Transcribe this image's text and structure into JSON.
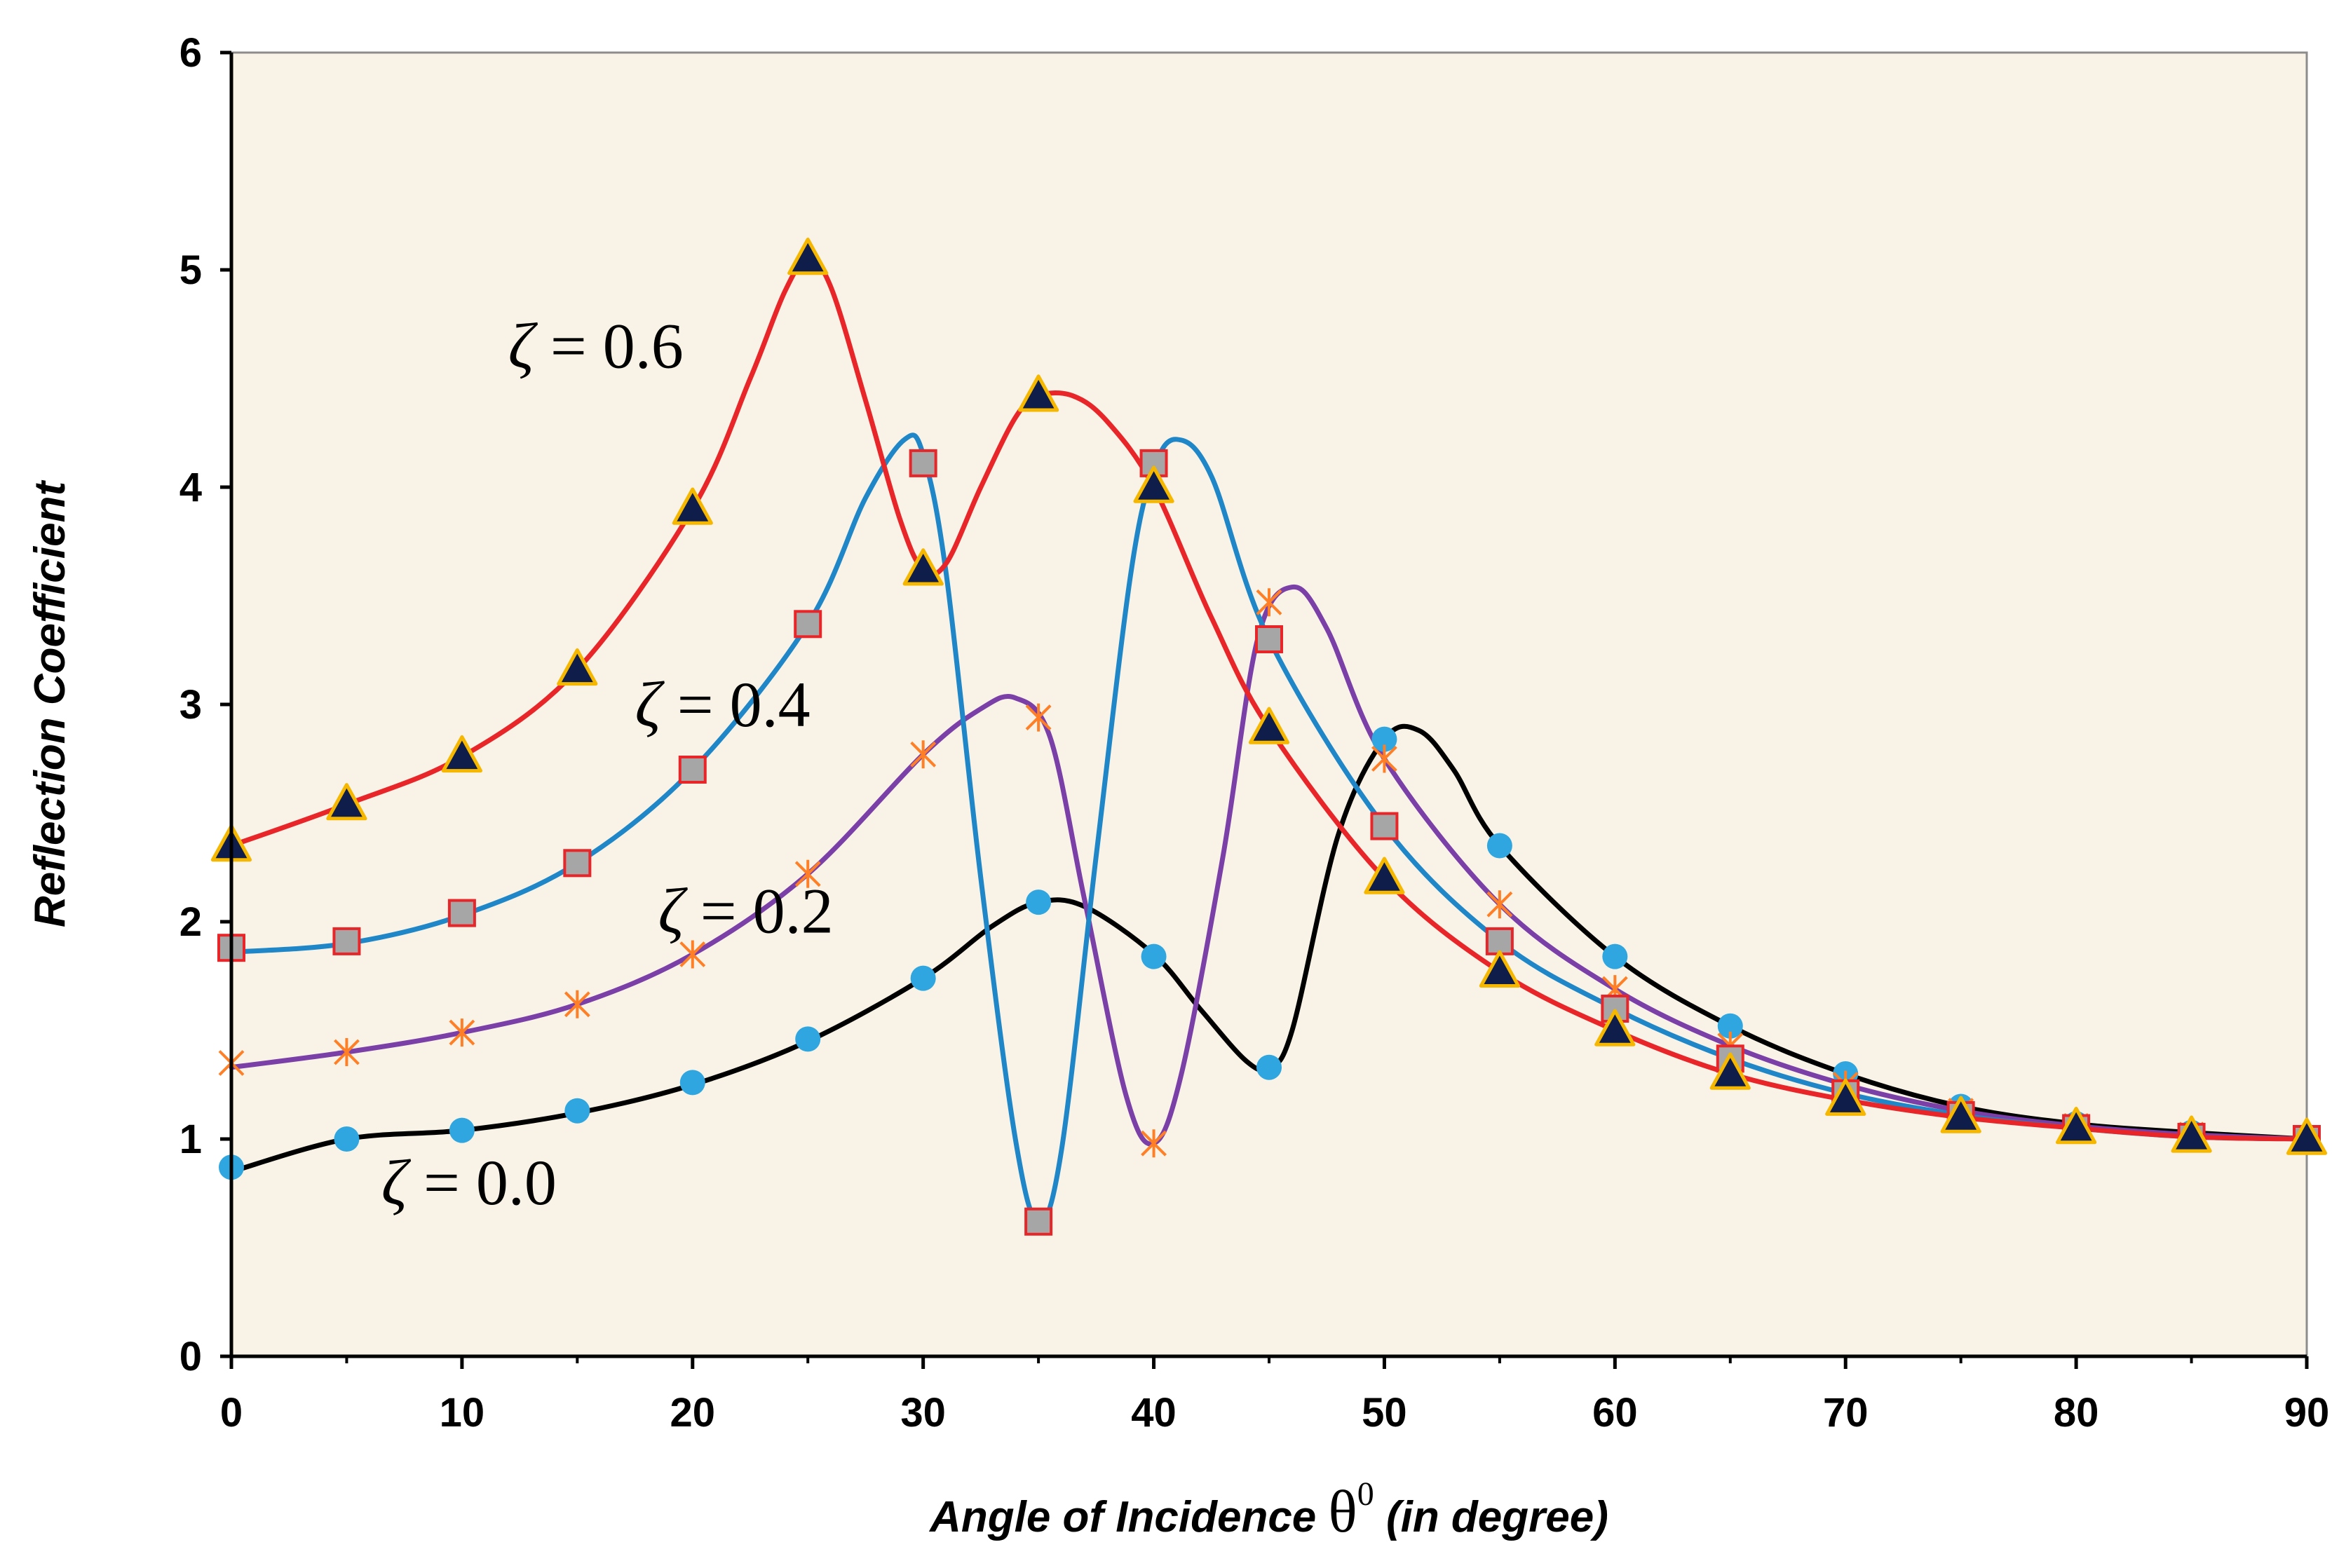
{
  "chart_data": {
    "type": "line",
    "title": "",
    "xlabel": {
      "prefix": "Angle of Incidence ",
      "symbol": "θ",
      "superscript": "0",
      "suffix": " (in degree)"
    },
    "ylabel": "Reflection Coefficient",
    "xlim": [
      0,
      90
    ],
    "ylim": [
      0,
      6
    ],
    "xticks": [
      0,
      10,
      20,
      30,
      40,
      50,
      60,
      70,
      80,
      90
    ],
    "yticks": [
      0,
      1,
      2,
      3,
      4,
      5,
      6
    ],
    "grid": false,
    "colors": {
      "plot_bg": "#f8f3e6",
      "axis": "#000000",
      "frame": "#8c8c8c"
    },
    "series": [
      {
        "name": "ζ = 0.0",
        "color": "#000000",
        "marker": "circle",
        "marker_color": "#2fa6df",
        "x": [
          0,
          5,
          10,
          15,
          20,
          25,
          30,
          35,
          40,
          45,
          50,
          55,
          60,
          65,
          70,
          75,
          80,
          85,
          90
        ],
        "values": [
          0.87,
          1.0,
          1.04,
          1.13,
          1.26,
          1.46,
          1.74,
          2.09,
          1.84,
          1.33,
          2.84,
          2.35,
          1.84,
          1.52,
          1.3,
          1.15,
          1.07,
          1.03,
          1.0
        ],
        "curve": [
          [
            0,
            0.85
          ],
          [
            5,
            1.0
          ],
          [
            10,
            1.04
          ],
          [
            15,
            1.12
          ],
          [
            20,
            1.25
          ],
          [
            25,
            1.45
          ],
          [
            30,
            1.74
          ],
          [
            33,
            1.98
          ],
          [
            35,
            2.09
          ],
          [
            37,
            2.07
          ],
          [
            40,
            1.85
          ],
          [
            42,
            1.6
          ],
          [
            44,
            1.36
          ],
          [
            45,
            1.33
          ],
          [
            46,
            1.5
          ],
          [
            48,
            2.4
          ],
          [
            50,
            2.84
          ],
          [
            51.5,
            2.88
          ],
          [
            53,
            2.7
          ],
          [
            55,
            2.35
          ],
          [
            60,
            1.84
          ],
          [
            65,
            1.52
          ],
          [
            70,
            1.3
          ],
          [
            75,
            1.15
          ],
          [
            80,
            1.07
          ],
          [
            85,
            1.03
          ],
          [
            90,
            1.0
          ]
        ]
      },
      {
        "name": "ζ = 0.2",
        "color": "#7b3fa8",
        "marker": "asterisk",
        "marker_color": "#ff7f27",
        "x": [
          0,
          5,
          10,
          15,
          20,
          25,
          30,
          35,
          40,
          45,
          50,
          55,
          60,
          65,
          70,
          75,
          80,
          85,
          90
        ],
        "values": [
          1.35,
          1.4,
          1.49,
          1.62,
          1.85,
          2.22,
          2.77,
          2.94,
          0.98,
          3.47,
          2.75,
          2.08,
          1.69,
          1.43,
          1.25,
          1.13,
          1.06,
          1.02,
          1.0
        ],
        "curve": [
          [
            0,
            1.33
          ],
          [
            5,
            1.4
          ],
          [
            10,
            1.49
          ],
          [
            15,
            1.62
          ],
          [
            20,
            1.85
          ],
          [
            25,
            2.22
          ],
          [
            30,
            2.77
          ],
          [
            32.5,
            2.98
          ],
          [
            34,
            3.03
          ],
          [
            35.5,
            2.85
          ],
          [
            37,
            2.1
          ],
          [
            38.8,
            1.2
          ],
          [
            40,
            0.98
          ],
          [
            41.2,
            1.3
          ],
          [
            43,
            2.3
          ],
          [
            44.5,
            3.3
          ],
          [
            46,
            3.54
          ],
          [
            47.5,
            3.35
          ],
          [
            50,
            2.75
          ],
          [
            55,
            2.08
          ],
          [
            60,
            1.69
          ],
          [
            65,
            1.43
          ],
          [
            70,
            1.25
          ],
          [
            75,
            1.13
          ],
          [
            80,
            1.06
          ],
          [
            85,
            1.02
          ],
          [
            90,
            1.0
          ]
        ]
      },
      {
        "name": "ζ = 0.4",
        "color": "#1f86c8",
        "marker": "square",
        "marker_color": "#a6a6a6",
        "marker_edge": "#e8262a",
        "x": [
          0,
          5,
          10,
          15,
          20,
          25,
          30,
          35,
          40,
          45,
          50,
          55,
          60,
          65,
          70,
          75,
          80,
          85,
          90
        ],
        "values": [
          1.88,
          1.91,
          2.04,
          2.27,
          2.7,
          3.37,
          4.11,
          0.62,
          4.11,
          3.3,
          2.44,
          1.91,
          1.6,
          1.37,
          1.21,
          1.11,
          1.05,
          1.01,
          1.0
        ],
        "curve": [
          [
            0,
            1.86
          ],
          [
            5,
            1.9
          ],
          [
            10,
            2.03
          ],
          [
            15,
            2.27
          ],
          [
            20,
            2.7
          ],
          [
            25,
            3.37
          ],
          [
            27.5,
            3.95
          ],
          [
            29.2,
            4.22
          ],
          [
            30,
            4.15
          ],
          [
            31,
            3.6
          ],
          [
            32.5,
            2.2
          ],
          [
            34,
            1.0
          ],
          [
            35,
            0.62
          ],
          [
            36,
            0.95
          ],
          [
            37.5,
            2.3
          ],
          [
            39,
            3.6
          ],
          [
            40,
            4.08
          ],
          [
            41,
            4.22
          ],
          [
            42.5,
            4.05
          ],
          [
            45,
            3.3
          ],
          [
            50,
            2.44
          ],
          [
            55,
            1.91
          ],
          [
            60,
            1.6
          ],
          [
            65,
            1.37
          ],
          [
            70,
            1.21
          ],
          [
            75,
            1.11
          ],
          [
            80,
            1.05
          ],
          [
            85,
            1.01
          ],
          [
            90,
            1.0
          ]
        ]
      },
      {
        "name": "ζ = 0.6",
        "color": "#e8262a",
        "marker": "triangle",
        "marker_color": "#0f1d4a",
        "marker_edge": "#f5b700",
        "x": [
          0,
          5,
          10,
          15,
          20,
          25,
          30,
          35,
          40,
          45,
          50,
          55,
          60,
          65,
          70,
          75,
          80,
          85,
          90
        ],
        "values": [
          2.35,
          2.54,
          2.76,
          3.16,
          3.9,
          5.05,
          3.62,
          4.42,
          4.0,
          2.89,
          2.2,
          1.77,
          1.5,
          1.3,
          1.18,
          1.1,
          1.05,
          1.01,
          1.0
        ],
        "curve": [
          [
            0,
            2.35
          ],
          [
            5,
            2.54
          ],
          [
            10,
            2.76
          ],
          [
            15,
            3.16
          ],
          [
            20,
            3.9
          ],
          [
            22.5,
            4.5
          ],
          [
            24,
            4.9
          ],
          [
            25,
            5.05
          ],
          [
            26,
            4.92
          ],
          [
            27.5,
            4.4
          ],
          [
            29,
            3.85
          ],
          [
            30,
            3.62
          ],
          [
            31,
            3.65
          ],
          [
            32.5,
            4.0
          ],
          [
            34,
            4.32
          ],
          [
            35,
            4.42
          ],
          [
            36.5,
            4.42
          ],
          [
            38,
            4.3
          ],
          [
            40,
            4.0
          ],
          [
            42.5,
            3.4
          ],
          [
            45,
            2.89
          ],
          [
            50,
            2.2
          ],
          [
            55,
            1.77
          ],
          [
            60,
            1.5
          ],
          [
            65,
            1.3
          ],
          [
            70,
            1.18
          ],
          [
            75,
            1.1
          ],
          [
            80,
            1.05
          ],
          [
            85,
            1.01
          ],
          [
            90,
            1.0
          ]
        ]
      }
    ],
    "annotations": [
      {
        "symbol": "ζ",
        "text": " = 0.6",
        "x": 12,
        "y": 4.55
      },
      {
        "symbol": "ζ",
        "text": " = 0.4",
        "x": 17.5,
        "y": 2.9
      },
      {
        "symbol": "ζ",
        "text": " = 0.2",
        "x": 18.5,
        "y": 1.95
      },
      {
        "symbol": "ζ",
        "text": " = 0.0",
        "x": 6.5,
        "y": 0.7
      }
    ]
  }
}
